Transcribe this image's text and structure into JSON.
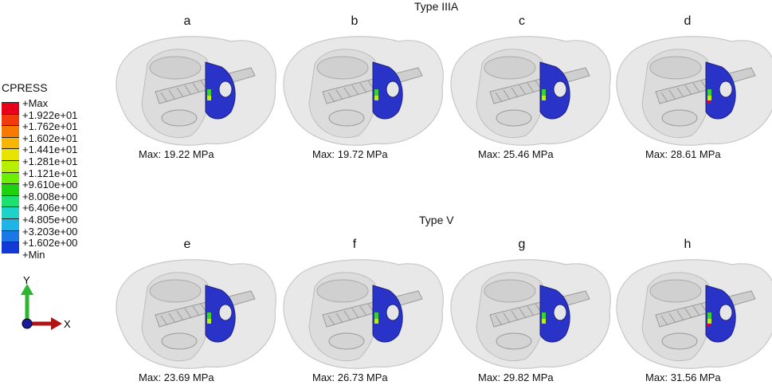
{
  "legend": {
    "title": "CPRESS",
    "labels": [
      "+Max",
      "+1.922e+01",
      "+1.762e+01",
      "+1.602e+01",
      "+1.441e+01",
      "+1.281e+01",
      "+1.121e+01",
      "+9.610e+00",
      "+8.008e+00",
      "+6.406e+00",
      "+4.805e+00",
      "+3.203e+00",
      "+1.602e+00",
      "+Min"
    ],
    "colors": [
      "#e8001a",
      "#f23b0c",
      "#f67a00",
      "#f8b600",
      "#e8e400",
      "#b6f000",
      "#6af000",
      "#1ed20e",
      "#1ee06e",
      "#1ed2c8",
      "#1eb4e6",
      "#1a78e6",
      "#1238d8"
    ]
  },
  "groups": [
    {
      "title": "Type IIIA"
    },
    {
      "title": "Type V"
    }
  ],
  "panels": [
    {
      "letter": "a",
      "caption": "Max: 19.22 MPa"
    },
    {
      "letter": "b",
      "caption": "Max: 19.72 MPa"
    },
    {
      "letter": "c",
      "caption": "Max: 25.46 MPa"
    },
    {
      "letter": "d",
      "caption": "Max: 28.61 MPa"
    },
    {
      "letter": "e",
      "caption": "Max: 23.69 MPa"
    },
    {
      "letter": "f",
      "caption": "Max: 26.73 MPa"
    },
    {
      "letter": "g",
      "caption": "Max: 29.82 MPa"
    },
    {
      "letter": "h",
      "caption": "Max: 31.56 MPa"
    }
  ],
  "axes": {
    "y_label": "Y",
    "x_label": "X",
    "y_color": "#2fb52f",
    "x_color": "#b01515",
    "origin_color": "#1a1aa0"
  }
}
